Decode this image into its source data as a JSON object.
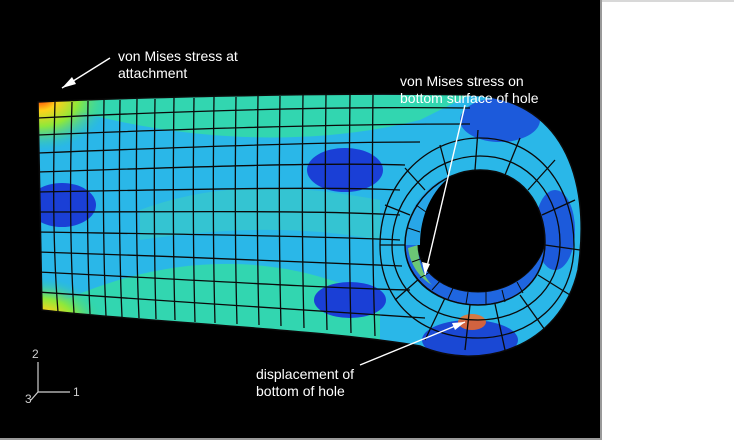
{
  "callouts": {
    "attachment": {
      "line1": "von Mises stress at",
      "line2": "attachment"
    },
    "hole_surface": {
      "line1": "von Mises stress on",
      "line2": "bottom surface of hole"
    },
    "displacement": {
      "line1": "displacement of",
      "line2": "bottom of hole"
    }
  },
  "triad": {
    "axis2": "2",
    "axis1": "1",
    "axis3": "3"
  },
  "colors": {
    "background": "#000000",
    "mesh_line": "#0a0a0a",
    "stress_low": "#1a3fd6",
    "stress_midlow": "#2ab7e8",
    "stress_mid": "#32d6b0",
    "stress_midhigh": "#9ee83a",
    "stress_high": "#ff8a1a",
    "stress_max": "#ff2a00"
  }
}
